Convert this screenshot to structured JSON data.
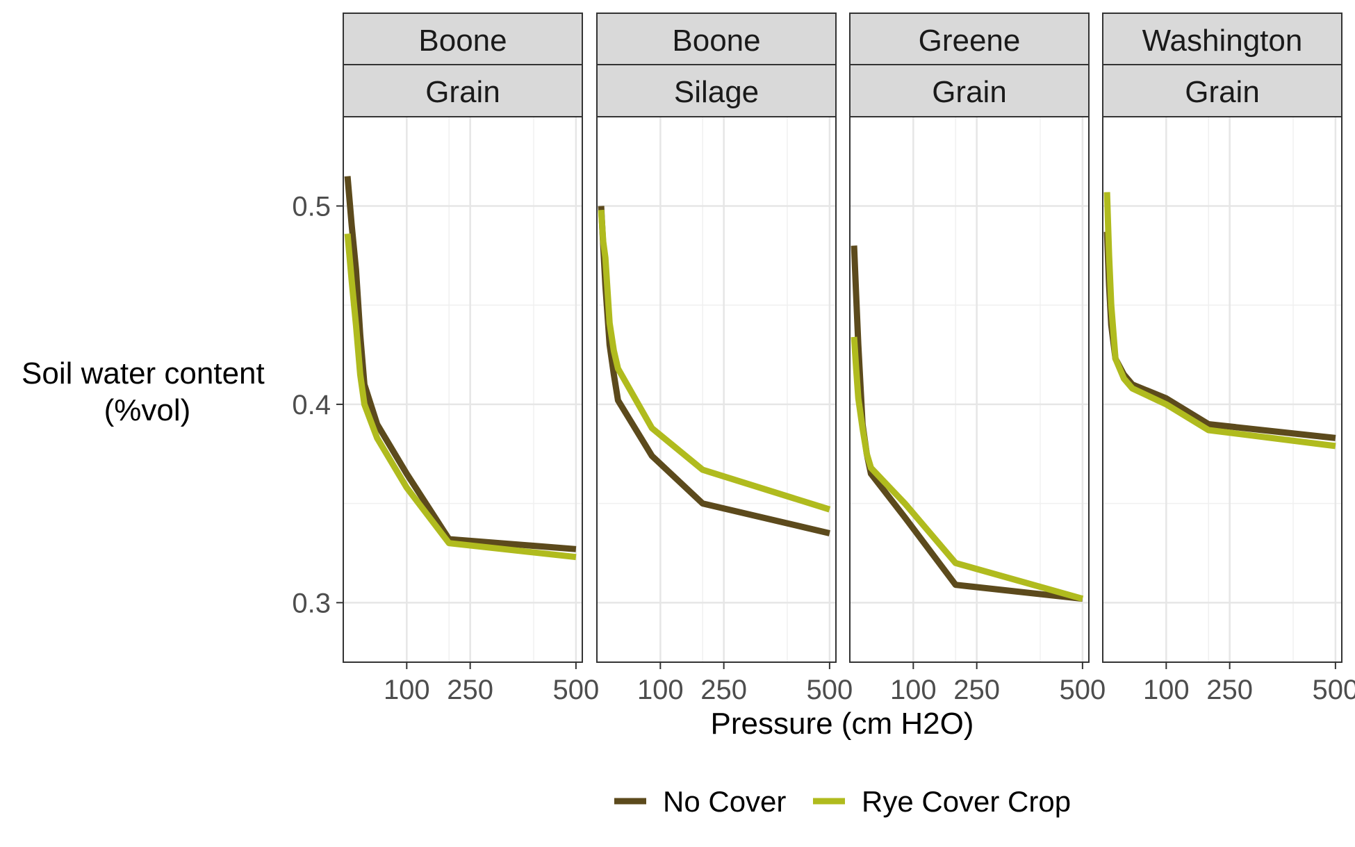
{
  "chart_data": {
    "type": "line",
    "xlabel": "Pressure (cm H2O)",
    "ylabel_lines": [
      "Soil water content",
      "(%vol)"
    ],
    "xlim": [
      -50,
      515
    ],
    "ylim": [
      0.27,
      0.545
    ],
    "x_ticks": [
      100,
      250,
      500
    ],
    "x_tick_labels": [
      "100",
      "250",
      "500"
    ],
    "x_minor_gridlines": [
      200,
      400
    ],
    "y_ticks": [
      0.3,
      0.4,
      0.5
    ],
    "y_tick_labels": [
      "0.3",
      "0.4",
      "0.5"
    ],
    "y_minor_gridlines": [
      0.35,
      0.45
    ],
    "grid": true,
    "legend_position": "bottom",
    "series_styles": [
      {
        "name": "No Cover",
        "color": "#5c4a1c"
      },
      {
        "name": "Rye Cover Crop",
        "color": "#b0bb1e"
      }
    ],
    "facets": [
      {
        "top": "Boone",
        "bottom": "Grain",
        "series": [
          {
            "name": "No Cover",
            "x": [
              -40,
              -30,
              -20,
              -10,
              0,
              30,
              100,
              200,
              500
            ],
            "y": [
              0.515,
              0.49,
              0.468,
              0.435,
              0.41,
              0.39,
              0.365,
              0.332,
              0.327
            ]
          },
          {
            "name": "Rye Cover Crop",
            "x": [
              -40,
              -30,
              -20,
              -10,
              0,
              30,
              100,
              200,
              500
            ],
            "y": [
              0.486,
              0.462,
              0.44,
              0.415,
              0.4,
              0.383,
              0.358,
              0.33,
              0.323
            ]
          }
        ]
      },
      {
        "top": "Boone",
        "bottom": "Silage",
        "series": [
          {
            "name": "No Cover",
            "x": [
              -40,
              -35,
              -30,
              -20,
              -10,
              0,
              80,
              200,
              500
            ],
            "y": [
              0.5,
              0.48,
              0.46,
              0.43,
              0.415,
              0.402,
              0.374,
              0.35,
              0.335
            ]
          },
          {
            "name": "Rye Cover Crop",
            "x": [
              -40,
              -35,
              -30,
              -20,
              -10,
              0,
              80,
              200,
              500
            ],
            "y": [
              0.498,
              0.482,
              0.474,
              0.441,
              0.427,
              0.418,
              0.388,
              0.367,
              0.347
            ]
          }
        ]
      },
      {
        "top": "Greene",
        "bottom": "Grain",
        "series": [
          {
            "name": "No Cover",
            "x": [
              -40,
              -35,
              -30,
              -20,
              -10,
              0,
              80,
              200,
              500
            ],
            "y": [
              0.48,
              0.455,
              0.43,
              0.39,
              0.375,
              0.365,
              0.343,
              0.309,
              0.302
            ]
          },
          {
            "name": "Rye Cover Crop",
            "x": [
              -40,
              -35,
              -30,
              -20,
              -10,
              0,
              80,
              200,
              500
            ],
            "y": [
              0.434,
              0.418,
              0.403,
              0.388,
              0.375,
              0.368,
              0.35,
              0.32,
              0.302
            ]
          }
        ]
      },
      {
        "top": "Washington",
        "bottom": "Grain",
        "series": [
          {
            "name": "No Cover",
            "x": [
              -40,
              -35,
              -30,
              -20,
              0,
              20,
              100,
              200,
              500
            ],
            "y": [
              0.487,
              0.46,
              0.44,
              0.423,
              0.415,
              0.41,
              0.403,
              0.39,
              0.383
            ]
          },
          {
            "name": "Rye Cover Crop",
            "x": [
              -40,
              -35,
              -30,
              -20,
              0,
              20,
              100,
              200,
              500
            ],
            "y": [
              0.507,
              0.475,
              0.45,
              0.423,
              0.413,
              0.408,
              0.4,
              0.387,
              0.379
            ]
          }
        ]
      }
    ]
  }
}
